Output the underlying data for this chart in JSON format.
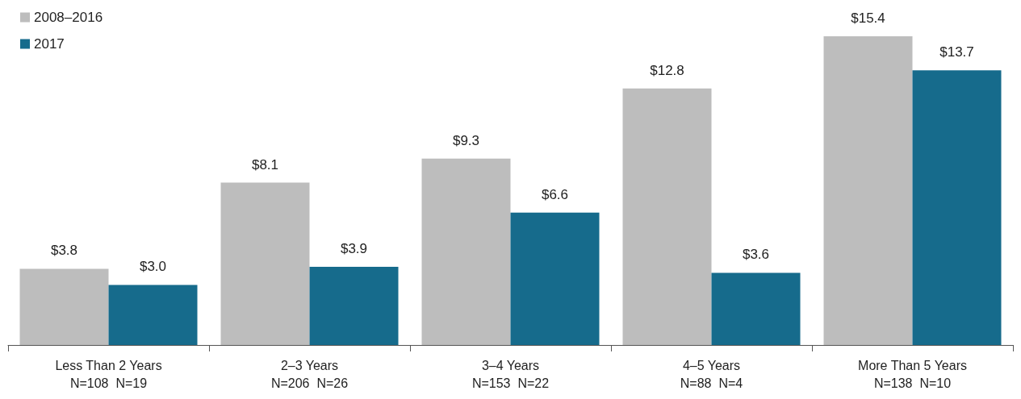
{
  "chart_data": {
    "type": "bar",
    "categories": [
      "Less Than 2 Years\nN=108  N=19",
      "2–3 Years\nN=206  N=26",
      "3–4 Years\nN=153  N=22",
      "4–5 Years\nN=88  N=4",
      "More Than 5 Years\nN=138  N=10"
    ],
    "series": [
      {
        "name": "2008–2016",
        "color": "#bdbdbd",
        "values": [
          3.8,
          8.1,
          9.3,
          12.8,
          15.4
        ],
        "value_labels": [
          "$3.8",
          "$8.1",
          "$9.3",
          "$12.8",
          "$15.4"
        ]
      },
      {
        "name": "2017",
        "color": "#166b8c",
        "values": [
          3.0,
          3.9,
          6.6,
          3.6,
          13.7
        ],
        "value_labels": [
          "$3.0",
          "$3.9",
          "$6.6",
          "$3.6",
          "$13.7"
        ]
      }
    ],
    "legend": "top left",
    "grid": false
  }
}
